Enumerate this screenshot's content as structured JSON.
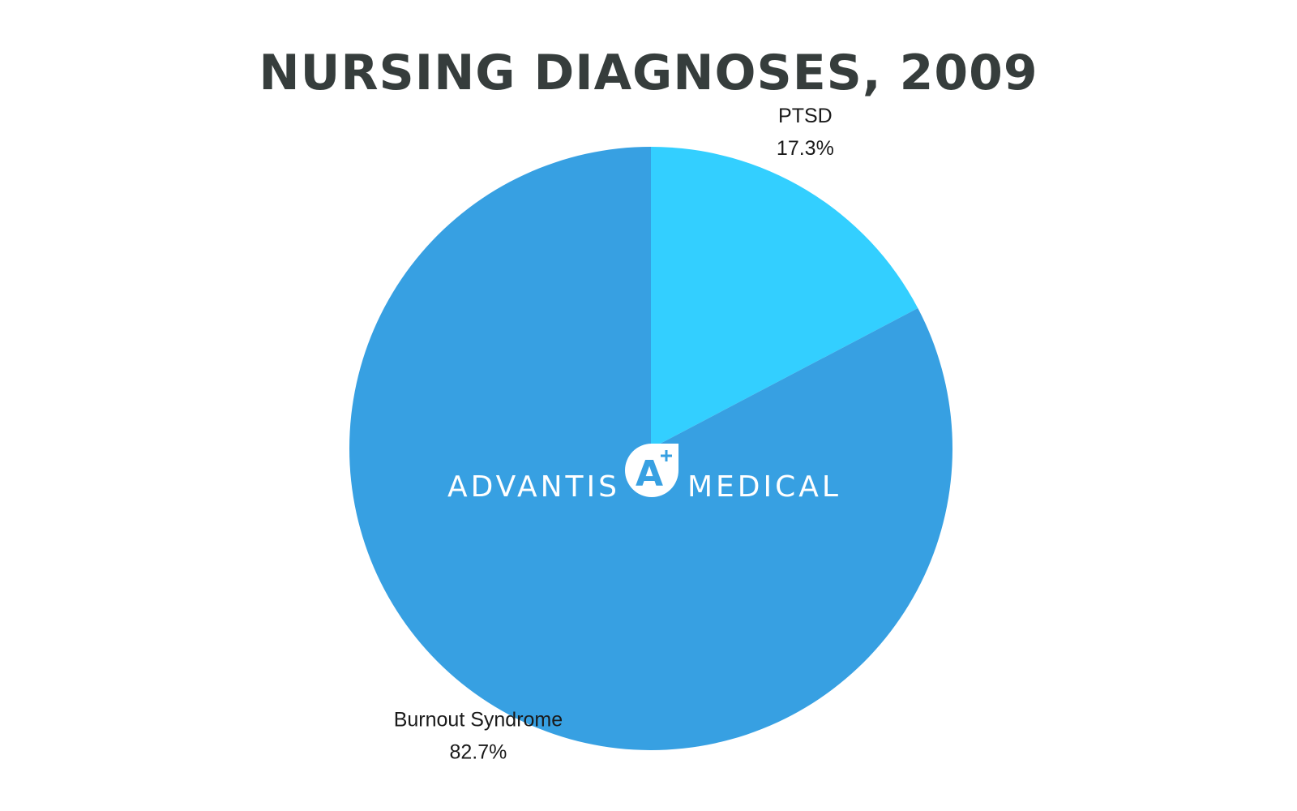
{
  "chart_data": {
    "type": "pie",
    "title": "NURSING DIAGNOSES, 2009",
    "slices": [
      {
        "label": "PTSD",
        "value": 17.3,
        "value_label": "17.3%",
        "color": "#33cfff"
      },
      {
        "label": "Burnout Syndrome",
        "value": 82.7,
        "value_label": "82.7%",
        "color": "#37a0e2"
      }
    ],
    "start_angle": "12 o'clock",
    "direction": "clockwise",
    "legend": "none"
  },
  "logo": {
    "left_text": "ADVANTIS",
    "right_text": "MEDICAL",
    "emblem_letter": "A",
    "emblem_accent_color": "#37a0e2"
  }
}
